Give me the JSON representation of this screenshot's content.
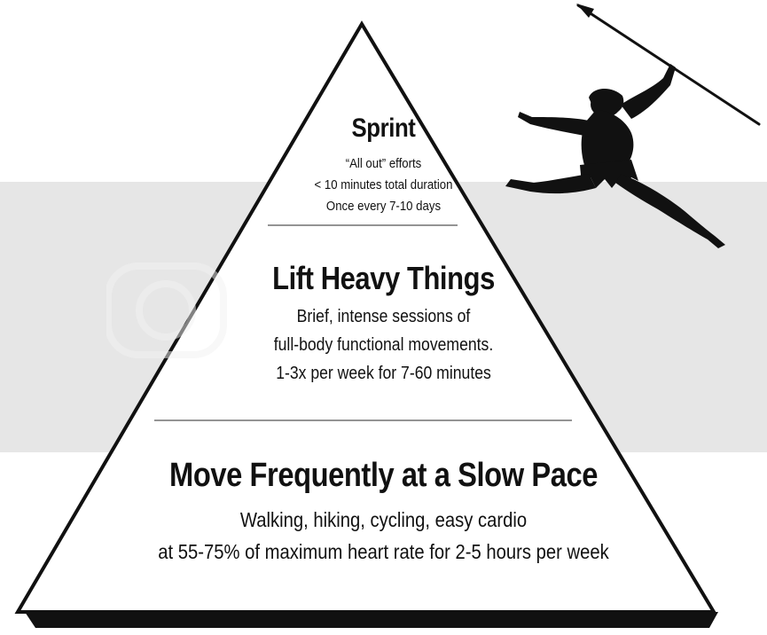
{
  "pyramid": {
    "colors": {
      "fill": "#ffffff",
      "stroke": "#111111",
      "shadow": "#111111",
      "band": "#e6e6e6",
      "divider": "#555555"
    },
    "tiers": [
      {
        "title": "Sprint",
        "lines": [
          "“All out” efforts",
          "< 10 minutes total duration",
          "Once every 7-10 days"
        ]
      },
      {
        "title": "Lift Heavy Things",
        "lines": [
          "Brief, intense sessions of",
          "full-body functional movements.",
          "1-3x per week for 7-60 minutes"
        ]
      },
      {
        "title": "Move Frequently at a Slow Pace",
        "lines": [
          "Walking, hiking, cycling, easy cardio",
          "at 55-75% of maximum heart rate for 2-5 hours per week"
        ]
      }
    ]
  },
  "figure": {
    "icon": "caveman-spear-silhouette-icon"
  }
}
